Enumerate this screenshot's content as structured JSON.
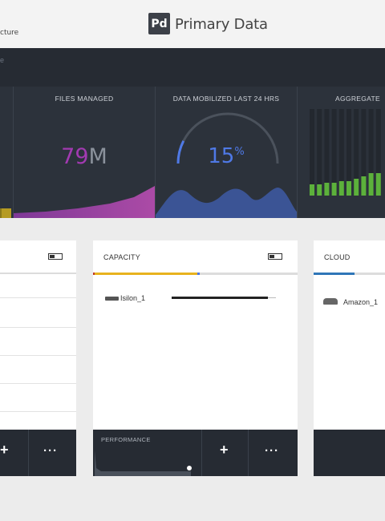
{
  "header": {
    "subtitle_fragment": "cture",
    "logo_mark": "Pd",
    "logo_text": "Primary Data"
  },
  "nav": {
    "fragment": "e"
  },
  "stats": {
    "files_managed": {
      "title": "FILES MANAGED",
      "value": "79",
      "unit": "M"
    },
    "data_mobilized": {
      "title": "DATA MOBILIZED LAST 24 HRS",
      "value": "15",
      "unit": "%",
      "gauge_fraction": 0.15
    },
    "aggregate": {
      "title": "AGGREGATE"
    }
  },
  "cards": {
    "left": {
      "title": ""
    },
    "capacity": {
      "title": "CAPACITY",
      "items": [
        {
          "label": "Isilon_1"
        }
      ],
      "footer_label": "PERFORMANCE",
      "add_label": "+",
      "more_label": "···"
    },
    "cloud": {
      "title": "CLOUD",
      "items": [
        {
          "label": "Amazon_1"
        }
      ]
    }
  },
  "left_card": {
    "add_label": "+",
    "more_label": "···"
  },
  "colors": {
    "accent_purple": "#a23ab1",
    "accent_blue": "#4f79e6",
    "capacity_yellow": "#e8b21e",
    "cloud_blue": "#2f76b8",
    "bar_green": "#5cb13b",
    "dark_panel": "#2c323b"
  }
}
